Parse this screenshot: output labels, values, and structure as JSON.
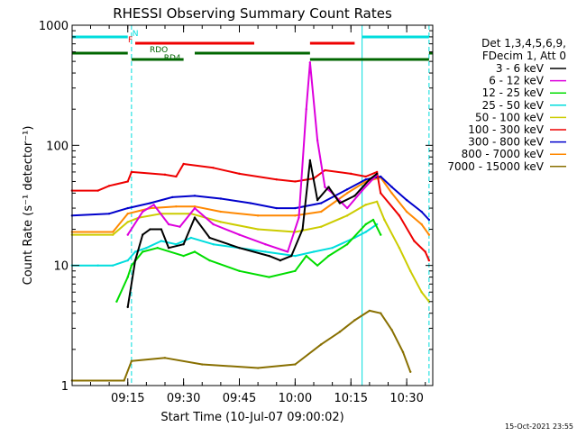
{
  "chart_data": {
    "type": "line",
    "title": "RHESSI Observing Summary Count Rates",
    "xlabel": "Start Time (10-Jul-07 09:00:02)",
    "ylabel": "Count Rate (s⁻¹ detector⁻¹)",
    "yscale": "log",
    "ylim": [
      1,
      1000
    ],
    "xlim": [
      "09:00:02",
      "10:37"
    ],
    "x_ticks": [
      "09:15",
      "09:30",
      "09:45",
      "10:00",
      "10:15",
      "10:30"
    ],
    "y_ticks": [
      "1",
      "10",
      "100",
      "1000"
    ],
    "grid": false,
    "legend_position": "right",
    "legend_header": [
      "Det 1,3,4,5,6,9,",
      "FDecim 1, Att 0"
    ],
    "timestamp": "15-Oct-2021 23:55",
    "series": [
      {
        "name": "3 - 6 keV",
        "color": "#000000",
        "points": [
          [
            "09:15",
            4.5
          ],
          [
            "09:17",
            11
          ],
          [
            "09:19",
            18
          ],
          [
            "09:21",
            20
          ],
          [
            "09:24",
            20
          ],
          [
            "09:26",
            14
          ],
          [
            "09:30",
            15
          ],
          [
            "09:33",
            25
          ],
          [
            "09:37",
            17
          ],
          [
            "09:45",
            14
          ],
          [
            "09:53",
            12
          ],
          [
            "09:56",
            11
          ],
          [
            "09:59",
            12
          ],
          [
            "10:02",
            20
          ],
          [
            "10:04",
            75
          ],
          [
            "10:06",
            35
          ],
          [
            "10:09",
            45
          ],
          [
            "10:12",
            33
          ],
          [
            "10:16",
            38
          ],
          [
            "10:20",
            52
          ],
          [
            "10:22",
            58
          ]
        ]
      },
      {
        "name": "6 - 12 keV",
        "color": "#dd00dd",
        "points": [
          [
            "09:15",
            18
          ],
          [
            "09:19",
            28
          ],
          [
            "09:22",
            32
          ],
          [
            "09:26",
            22
          ],
          [
            "09:29",
            21
          ],
          [
            "09:33",
            30
          ],
          [
            "09:38",
            22
          ],
          [
            "09:45",
            18
          ],
          [
            "09:52",
            15
          ],
          [
            "09:58",
            13
          ],
          [
            "10:01",
            25
          ],
          [
            "10:03",
            200
          ],
          [
            "10:04",
            490
          ],
          [
            "10:06",
            110
          ],
          [
            "10:08",
            45
          ],
          [
            "10:10",
            40
          ],
          [
            "10:14",
            30
          ],
          [
            "10:18",
            42
          ],
          [
            "10:22",
            57
          ]
        ]
      },
      {
        "name": "12 - 25 keV",
        "color": "#00dd00",
        "points": [
          [
            "09:12",
            5
          ],
          [
            "09:15",
            8
          ],
          [
            "09:16",
            10
          ],
          [
            "09:19",
            13
          ],
          [
            "09:23",
            14
          ],
          [
            "09:30",
            12
          ],
          [
            "09:33",
            13
          ],
          [
            "09:37",
            11
          ],
          [
            "09:45",
            9
          ],
          [
            "09:53",
            8
          ],
          [
            "10:00",
            9
          ],
          [
            "10:03",
            12
          ],
          [
            "10:06",
            10
          ],
          [
            "10:09",
            12
          ],
          [
            "10:14",
            15
          ],
          [
            "10:19",
            22
          ],
          [
            "10:21",
            24
          ],
          [
            "10:23",
            18
          ]
        ]
      },
      {
        "name": "25 - 50 keV",
        "color": "#00dddd",
        "points": [
          [
            "09:00",
            10
          ],
          [
            "09:07",
            10
          ],
          [
            "09:11",
            10
          ],
          [
            "09:15",
            11
          ],
          [
            "09:17",
            13
          ],
          [
            "09:20",
            14
          ],
          [
            "09:24",
            16
          ],
          [
            "09:28",
            15
          ],
          [
            "09:32",
            17
          ],
          [
            "09:38",
            15
          ],
          [
            "09:45",
            14
          ],
          [
            "09:52",
            13
          ],
          [
            "10:00",
            12
          ],
          [
            "10:05",
            13
          ],
          [
            "10:10",
            14
          ],
          [
            "10:16",
            17
          ],
          [
            "10:19",
            19
          ],
          [
            "10:22",
            22
          ]
        ]
      },
      {
        "name": "50 - 100 keV",
        "color": "#cccc00",
        "points": [
          [
            "09:00",
            18
          ],
          [
            "09:11",
            18
          ],
          [
            "09:15",
            23
          ],
          [
            "09:18",
            25
          ],
          [
            "09:24",
            27
          ],
          [
            "09:32",
            27
          ],
          [
            "09:40",
            23
          ],
          [
            "09:50",
            20
          ],
          [
            "10:00",
            19
          ],
          [
            "10:07",
            21
          ],
          [
            "10:14",
            26
          ],
          [
            "10:19",
            32
          ],
          [
            "10:22",
            34
          ],
          [
            "10:24",
            24
          ],
          [
            "10:28",
            14
          ],
          [
            "10:31",
            9
          ],
          [
            "10:34",
            6
          ],
          [
            "10:36",
            5
          ]
        ]
      },
      {
        "name": "100 - 300 keV",
        "color": "#ee0000",
        "points": [
          [
            "09:00",
            42
          ],
          [
            "09:07",
            42
          ],
          [
            "09:10",
            46
          ],
          [
            "09:15",
            50
          ],
          [
            "09:16",
            60
          ],
          [
            "09:25",
            57
          ],
          [
            "09:28",
            55
          ],
          [
            "09:30",
            70
          ],
          [
            "09:38",
            65
          ],
          [
            "09:45",
            58
          ],
          [
            "09:55",
            52
          ],
          [
            "10:00",
            50
          ],
          [
            "10:05",
            53
          ],
          [
            "10:08",
            62
          ],
          [
            "10:15",
            58
          ],
          [
            "10:19",
            55
          ],
          [
            "10:22",
            60
          ],
          [
            "10:23",
            40
          ],
          [
            "10:28",
            26
          ],
          [
            "10:32",
            16
          ],
          [
            "10:35",
            13
          ],
          [
            "10:36",
            11
          ]
        ]
      },
      {
        "name": "300 - 800 keV",
        "color": "#0000cc",
        "points": [
          [
            "09:00",
            26
          ],
          [
            "09:10",
            27
          ],
          [
            "09:15",
            30
          ],
          [
            "09:21",
            33
          ],
          [
            "09:27",
            37
          ],
          [
            "09:33",
            38
          ],
          [
            "09:40",
            36
          ],
          [
            "09:48",
            33
          ],
          [
            "09:55",
            30
          ],
          [
            "10:00",
            30
          ],
          [
            "10:07",
            33
          ],
          [
            "10:14",
            43
          ],
          [
            "10:19",
            52
          ],
          [
            "10:23",
            55
          ],
          [
            "10:26",
            45
          ],
          [
            "10:30",
            35
          ],
          [
            "10:34",
            28
          ],
          [
            "10:36",
            24
          ]
        ]
      },
      {
        "name": "800 - 7000 keV",
        "color": "#ff8800",
        "points": [
          [
            "09:00",
            19
          ],
          [
            "09:11",
            19
          ],
          [
            "09:15",
            27
          ],
          [
            "09:21",
            30
          ],
          [
            "09:28",
            31
          ],
          [
            "09:33",
            31
          ],
          [
            "09:40",
            28
          ],
          [
            "09:50",
            26
          ],
          [
            "10:00",
            26
          ],
          [
            "10:07",
            28
          ],
          [
            "10:14",
            40
          ],
          [
            "10:19",
            50
          ],
          [
            "10:23",
            54
          ],
          [
            "10:26",
            40
          ],
          [
            "10:30",
            28
          ],
          [
            "10:34",
            22
          ],
          [
            "10:36",
            18
          ]
        ]
      },
      {
        "name": "7000 - 15000 keV",
        "color": "#886f00",
        "points": [
          [
            "09:00",
            1.1
          ],
          [
            "09:14",
            1.1
          ],
          [
            "09:16",
            1.6
          ],
          [
            "09:25",
            1.7
          ],
          [
            "09:35",
            1.5
          ],
          [
            "09:50",
            1.4
          ],
          [
            "10:00",
            1.5
          ],
          [
            "10:07",
            2.2
          ],
          [
            "10:12",
            2.8
          ],
          [
            "10:16",
            3.5
          ],
          [
            "10:20",
            4.2
          ],
          [
            "10:23",
            4.0
          ],
          [
            "10:26",
            2.9
          ],
          [
            "10:29",
            1.9
          ],
          [
            "10:31",
            1.3
          ]
        ]
      }
    ],
    "vertical_markers": [
      {
        "time": "09:16",
        "color": "#00dddd",
        "style": "dashed"
      },
      {
        "time": "10:18",
        "color": "#00dddd",
        "style": "solid"
      },
      {
        "time": "10:36",
        "color": "#00dddd",
        "style": "dashed"
      }
    ],
    "flag_bars": [
      {
        "label": "N",
        "color": "#00dddd",
        "row": 1,
        "segments": [
          [
            "09:00",
            "09:15"
          ],
          [
            "10:18",
            "10:36"
          ]
        ]
      },
      {
        "label": "F",
        "color": "#ee0000",
        "row": 2,
        "segments": [
          [
            "09:17",
            "09:49"
          ],
          [
            "10:04",
            "10:16"
          ]
        ]
      },
      {
        "label": "RDO",
        "color": "#006600",
        "row": 3,
        "segments": [
          [
            "09:00",
            "09:15"
          ],
          [
            "09:33",
            "10:04"
          ],
          [
            "10:36",
            "10:37"
          ]
        ]
      },
      {
        "label": "RD4",
        "color": "#006600",
        "row": 4,
        "segments": [
          [
            "09:16",
            "09:30"
          ],
          [
            "10:04",
            "10:36"
          ]
        ]
      }
    ]
  }
}
